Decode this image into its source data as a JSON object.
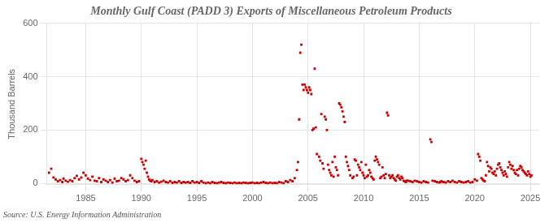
{
  "chart_data": {
    "type": "scatter",
    "title": "Monthly Gulf Coast (PADD 3) Exports of Miscellaneous Petroleum Products",
    "ylabel": "Thousand Barrels",
    "annotation": "Source: U.S. Energy Information Administration",
    "color": "#cc0000",
    "marker": "square",
    "grid": true,
    "xlim": [
      1981.5,
      2025.8
    ],
    "ylim": [
      -5,
      600
    ],
    "xticks": [
      1985,
      1990,
      1995,
      2000,
      2005,
      2010,
      2015,
      2020,
      2025
    ],
    "yticks": [
      0,
      200,
      400,
      600
    ],
    "x": [
      1981.7,
      1981.9,
      1982.1,
      1982.3,
      1982.5,
      1982.7,
      1982.9,
      1983.0,
      1983.2,
      1983.4,
      1983.6,
      1983.8,
      1984.0,
      1984.2,
      1984.4,
      1984.6,
      1984.8,
      1985.0,
      1985.2,
      1985.4,
      1985.6,
      1985.8,
      1986.0,
      1986.2,
      1986.4,
      1986.6,
      1986.8,
      1987.0,
      1987.2,
      1987.4,
      1987.6,
      1987.8,
      1988.0,
      1988.2,
      1988.4,
      1988.6,
      1988.8,
      1989.0,
      1989.2,
      1989.4,
      1989.6,
      1989.8,
      1990.0,
      1990.1,
      1990.2,
      1990.3,
      1990.4,
      1990.5,
      1990.6,
      1990.7,
      1990.8,
      1990.9,
      1991.0,
      1991.2,
      1991.4,
      1991.6,
      1991.8,
      1992.0,
      1992.2,
      1992.4,
      1992.6,
      1992.8,
      1993.0,
      1993.2,
      1993.4,
      1993.6,
      1993.8,
      1994.0,
      1994.2,
      1994.4,
      1994.6,
      1994.8,
      1995.0,
      1995.2,
      1995.4,
      1995.6,
      1995.8,
      1996.0,
      1996.2,
      1996.4,
      1996.6,
      1996.8,
      1997.0,
      1997.2,
      1997.4,
      1997.6,
      1997.8,
      1998.0,
      1998.2,
      1998.4,
      1998.6,
      1998.8,
      1999.0,
      1999.2,
      1999.4,
      1999.6,
      1999.8,
      2000.0,
      2000.2,
      2000.4,
      2000.6,
      2000.8,
      2001.0,
      2001.2,
      2001.4,
      2001.6,
      2001.8,
      2002.0,
      2002.2,
      2002.4,
      2002.6,
      2002.8,
      2003.0,
      2003.2,
      2003.4,
      2003.6,
      2003.8,
      2004.0,
      2004.1,
      2004.2,
      2004.3,
      2004.4,
      2004.5,
      2004.6,
      2004.7,
      2004.8,
      2004.9,
      2005.0,
      2005.1,
      2005.2,
      2005.3,
      2005.4,
      2005.5,
      2005.6,
      2005.7,
      2005.8,
      2006.0,
      2006.1,
      2006.2,
      2006.3,
      2006.4,
      2006.5,
      2006.6,
      2006.7,
      2006.8,
      2006.9,
      2007.0,
      2007.1,
      2007.2,
      2007.3,
      2007.4,
      2007.5,
      2007.6,
      2007.7,
      2007.8,
      2007.9,
      2008.0,
      2008.1,
      2008.2,
      2008.3,
      2008.4,
      2008.5,
      2008.6,
      2008.7,
      2008.8,
      2009.0,
      2009.1,
      2009.2,
      2009.3,
      2009.4,
      2009.5,
      2009.6,
      2009.7,
      2009.8,
      2009.9,
      2010.0,
      2010.1,
      2010.2,
      2010.3,
      2010.4,
      2010.5,
      2010.6,
      2010.7,
      2010.8,
      2010.9,
      2011.0,
      2011.1,
      2011.2,
      2011.3,
      2011.4,
      2011.5,
      2011.6,
      2011.7,
      2011.8,
      2011.9,
      2012.0,
      2012.1,
      2012.2,
      2012.3,
      2012.4,
      2012.5,
      2012.6,
      2012.7,
      2012.8,
      2012.9,
      2013.0,
      2013.1,
      2013.2,
      2013.3,
      2013.4,
      2013.5,
      2013.6,
      2013.7,
      2013.8,
      2013.9,
      2014.0,
      2014.2,
      2014.4,
      2014.6,
      2014.8,
      2015.0,
      2015.2,
      2015.4,
      2015.6,
      2015.8,
      2016.0,
      2016.1,
      2016.2,
      2016.4,
      2016.6,
      2016.8,
      2016.9,
      2017.0,
      2017.2,
      2017.4,
      2017.6,
      2017.8,
      2018.0,
      2018.2,
      2018.4,
      2018.6,
      2018.8,
      2019.0,
      2019.2,
      2019.4,
      2019.6,
      2019.8,
      2020.0,
      2020.2,
      2020.3,
      2020.4,
      2020.5,
      2020.6,
      2020.7,
      2020.8,
      2020.9,
      2021.0,
      2021.1,
      2021.2,
      2021.3,
      2021.4,
      2021.5,
      2021.6,
      2021.7,
      2021.8,
      2021.9,
      2022.0,
      2022.1,
      2022.2,
      2022.3,
      2022.4,
      2022.5,
      2022.6,
      2022.7,
      2022.8,
      2022.9,
      2023.0,
      2023.1,
      2023.2,
      2023.3,
      2023.4,
      2023.5,
      2023.6,
      2023.7,
      2023.8,
      2023.9,
      2024.0,
      2024.1,
      2024.2,
      2024.3,
      2024.4,
      2024.5,
      2024.6,
      2024.7,
      2024.8,
      2024.9,
      2025.0,
      2025.1
    ],
    "values": [
      40,
      55,
      22,
      15,
      8,
      12,
      5,
      18,
      10,
      6,
      12,
      8,
      20,
      28,
      15,
      22,
      40,
      30,
      18,
      12,
      25,
      10,
      8,
      20,
      5,
      15,
      10,
      5,
      12,
      3,
      18,
      8,
      10,
      20,
      15,
      8,
      12,
      30,
      20,
      10,
      5,
      8,
      92,
      80,
      70,
      55,
      85,
      40,
      25,
      15,
      10,
      8,
      12,
      5,
      8,
      3,
      6,
      10,
      5,
      3,
      8,
      2,
      5,
      3,
      8,
      2,
      5,
      3,
      5,
      2,
      8,
      3,
      5,
      2,
      8,
      3,
      1,
      3,
      1,
      5,
      2,
      1,
      3,
      5,
      2,
      1,
      3,
      2,
      1,
      3,
      1,
      2,
      1,
      3,
      2,
      1,
      2,
      3,
      1,
      2,
      1,
      3,
      5,
      2,
      1,
      3,
      1,
      2,
      1,
      5,
      3,
      1,
      8,
      5,
      12,
      8,
      20,
      50,
      80,
      240,
      490,
      520,
      370,
      350,
      370,
      360,
      350,
      340,
      360,
      350,
      335,
      200,
      205,
      430,
      210,
      110,
      100,
      85,
      260,
      75,
      55,
      250,
      240,
      200,
      70,
      50,
      40,
      30,
      80,
      25,
      100,
      60,
      50,
      30,
      300,
      295,
      285,
      270,
      250,
      230,
      100,
      80,
      65,
      50,
      30,
      20,
      25,
      90,
      85,
      30,
      70,
      60,
      50,
      80,
      40,
      30,
      20,
      70,
      25,
      30,
      50,
      40,
      25,
      20,
      15,
      85,
      100,
      90,
      80,
      70,
      20,
      25,
      60,
      30,
      20,
      35,
      265,
      255,
      30,
      20,
      25,
      30,
      20,
      15,
      10,
      25,
      30,
      20,
      15,
      25,
      20,
      10,
      8,
      5,
      10,
      10,
      8,
      5,
      10,
      8,
      5,
      3,
      8,
      5,
      3,
      165,
      155,
      10,
      8,
      5,
      3,
      5,
      8,
      5,
      3,
      8,
      5,
      10,
      5,
      3,
      8,
      5,
      3,
      5,
      8,
      3,
      5,
      15,
      10,
      110,
      100,
      85,
      20,
      15,
      10,
      8,
      30,
      80,
      65,
      45,
      60,
      55,
      40,
      35,
      45,
      30,
      55,
      70,
      75,
      60,
      50,
      40,
      30,
      45,
      35,
      25,
      60,
      80,
      70,
      55,
      65,
      50,
      40,
      35,
      50,
      30,
      55,
      65,
      60,
      50,
      45,
      40,
      35,
      30,
      45,
      35,
      25,
      30
    ]
  }
}
